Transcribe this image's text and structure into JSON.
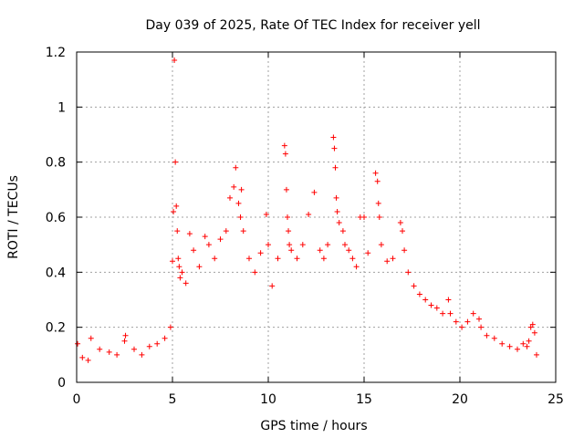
{
  "chart_data": {
    "type": "scatter",
    "title": "Day 039 of 2025, Rate Of TEC Index for receiver yell",
    "xlabel": "GPS time / hours",
    "ylabel": "ROTI / TECUs",
    "xlim": [
      0,
      25
    ],
    "ylim": [
      0,
      1.2
    ],
    "xticks": [
      0,
      5,
      10,
      15,
      20,
      25
    ],
    "xtick_labels": [
      "0",
      "5",
      "10",
      "15",
      "20",
      "25"
    ],
    "yticks": [
      0,
      0.2,
      0.4,
      0.6,
      0.8,
      1.0,
      1.2
    ],
    "ytick_labels": [
      "0",
      "0.2",
      "0.4",
      "0.6",
      "0.8",
      "1",
      "1.2"
    ],
    "grid": true,
    "marker": "+",
    "color": "#ff0000",
    "series": [
      {
        "name": "ROTI",
        "x": [
          0.05,
          0.3,
          0.6,
          0.75,
          1.2,
          1.7,
          2.1,
          2.5,
          2.55,
          3.0,
          3.4,
          3.8,
          4.2,
          4.6,
          4.9,
          5.0,
          5.05,
          5.1,
          5.15,
          5.2,
          5.25,
          5.3,
          5.35,
          5.4,
          5.5,
          5.7,
          5.9,
          6.1,
          6.4,
          6.7,
          6.9,
          7.2,
          7.5,
          7.8,
          8.0,
          8.2,
          8.3,
          8.45,
          8.55,
          8.6,
          8.7,
          9.0,
          9.3,
          9.6,
          9.9,
          10.0,
          10.2,
          10.5,
          10.85,
          10.9,
          10.95,
          11.0,
          11.05,
          11.1,
          11.2,
          11.5,
          11.8,
          12.1,
          12.4,
          12.7,
          12.9,
          13.1,
          13.4,
          13.45,
          13.5,
          13.55,
          13.6,
          13.7,
          13.9,
          14.0,
          14.2,
          14.4,
          14.6,
          14.8,
          15.0,
          15.2,
          15.6,
          15.7,
          15.75,
          15.8,
          15.9,
          16.2,
          16.5,
          16.9,
          17.0,
          17.1,
          17.3,
          17.6,
          17.9,
          18.2,
          18.5,
          18.8,
          19.1,
          19.4,
          19.5,
          19.8,
          20.1,
          20.4,
          20.7,
          21.0,
          21.1,
          21.4,
          21.8,
          22.2,
          22.6,
          23.0,
          23.3,
          23.5,
          23.6,
          23.7,
          23.8,
          23.9,
          24.0
        ],
        "y": [
          0.14,
          0.09,
          0.08,
          0.16,
          0.12,
          0.11,
          0.1,
          0.15,
          0.17,
          0.12,
          0.1,
          0.13,
          0.14,
          0.16,
          0.2,
          0.44,
          0.62,
          1.17,
          0.8,
          0.64,
          0.55,
          0.45,
          0.42,
          0.38,
          0.4,
          0.36,
          0.54,
          0.48,
          0.42,
          0.53,
          0.5,
          0.45,
          0.52,
          0.55,
          0.67,
          0.71,
          0.78,
          0.65,
          0.6,
          0.7,
          0.55,
          0.45,
          0.4,
          0.47,
          0.61,
          0.5,
          0.35,
          0.45,
          0.86,
          0.83,
          0.7,
          0.6,
          0.55,
          0.5,
          0.48,
          0.45,
          0.5,
          0.61,
          0.69,
          0.48,
          0.45,
          0.5,
          0.89,
          0.85,
          0.78,
          0.67,
          0.62,
          0.58,
          0.55,
          0.5,
          0.48,
          0.45,
          0.42,
          0.6,
          0.6,
          0.47,
          0.76,
          0.73,
          0.65,
          0.6,
          0.5,
          0.44,
          0.45,
          0.58,
          0.55,
          0.48,
          0.4,
          0.35,
          0.32,
          0.3,
          0.28,
          0.27,
          0.25,
          0.3,
          0.25,
          0.22,
          0.2,
          0.22,
          0.25,
          0.23,
          0.2,
          0.17,
          0.16,
          0.14,
          0.13,
          0.12,
          0.14,
          0.13,
          0.15,
          0.2,
          0.21,
          0.18,
          0.1
        ]
      }
    ]
  }
}
